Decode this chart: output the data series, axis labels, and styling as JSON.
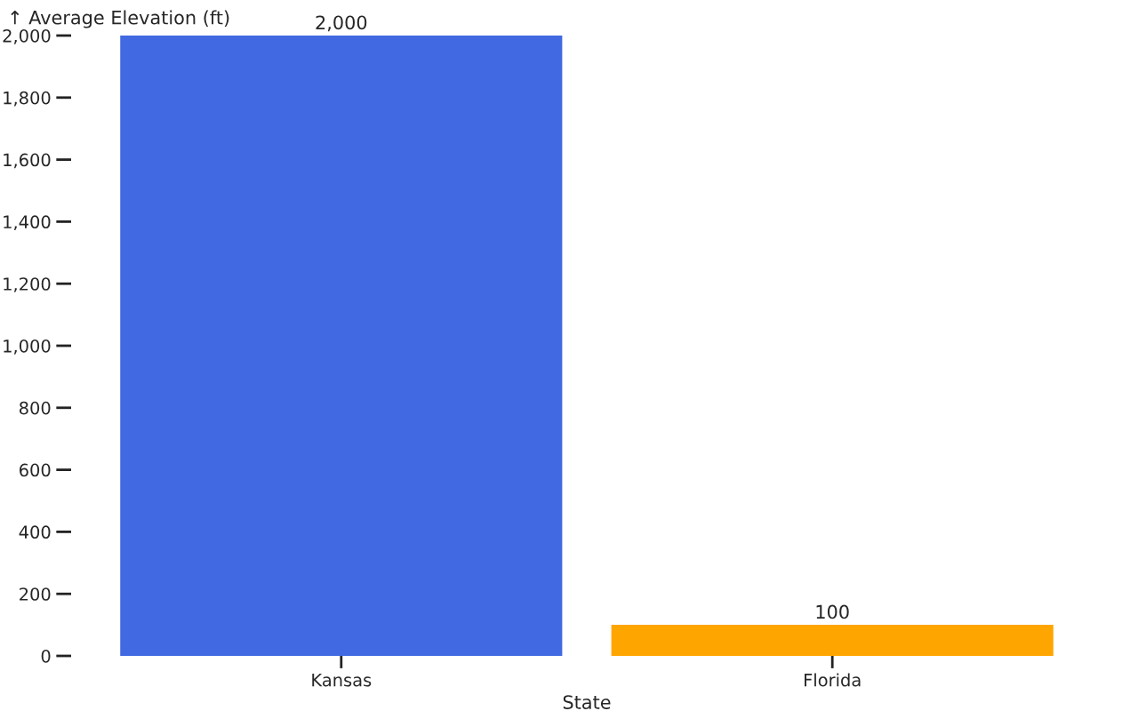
{
  "chart_data": {
    "type": "bar",
    "ylabel": "↑ Average Elevation (ft)",
    "xlabel": "State",
    "categories": [
      "Kansas",
      "Florida"
    ],
    "values": [
      2000,
      100
    ],
    "colors": [
      "#4169e1",
      "#ffa500"
    ],
    "ylim": [
      0,
      2000
    ],
    "yticks": [
      0,
      200,
      400,
      600,
      800,
      {
        "value": 1000,
        "label": "1,000"
      },
      {
        "value": 1200,
        "label": "1,200"
      },
      {
        "value": 1400,
        "label": "1,400"
      },
      {
        "value": 1600,
        "label": "1,600"
      },
      {
        "value": 1800,
        "label": "1,800"
      },
      {
        "value": 2000,
        "label": "2,000"
      }
    ],
    "value_labels": [
      "2,000",
      "100"
    ],
    "grid": false,
    "legend": false
  }
}
